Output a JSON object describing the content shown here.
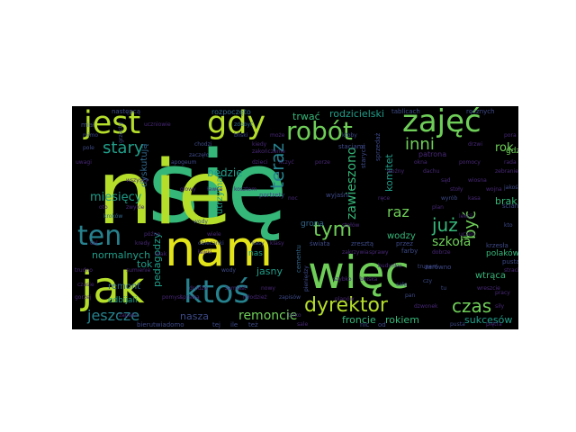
{
  "palette": {
    "yellow": "#e2e419",
    "lime": "#b5de2b",
    "green": "#6ece58",
    "teal_green": "#35b779",
    "teal": "#1f9e89",
    "cyan_blue": "#26828e",
    "blue": "#31688e",
    "indigo": "#3e4a89",
    "purple": "#482878",
    "dark_purple": "#440154"
  },
  "words": [
    {
      "text": "się",
      "c": "teal_green"
    },
    {
      "text": "nie",
      "c": "lime"
    },
    {
      "text": "nam",
      "c": "yellow"
    },
    {
      "text": "więc",
      "c": "green"
    },
    {
      "text": "jak",
      "c": "lime"
    },
    {
      "text": "jest",
      "c": "lime"
    },
    {
      "text": "gdy",
      "c": "lime"
    },
    {
      "text": "zajęć",
      "c": "green"
    },
    {
      "text": "robót",
      "c": "green"
    },
    {
      "text": "ktoś",
      "c": "cyan_blue"
    },
    {
      "text": "ten",
      "c": "cyan_blue"
    },
    {
      "text": "dyrektor",
      "c": "lime"
    },
    {
      "text": "czas",
      "c": "green"
    },
    {
      "text": "tym",
      "c": "green"
    },
    {
      "text": "teraz",
      "c": "cyan_blue"
    },
    {
      "text": "już",
      "c": "teal_green"
    },
    {
      "text": "być",
      "c": "green"
    },
    {
      "text": "stary",
      "c": "teal"
    },
    {
      "text": "inni",
      "c": "green"
    },
    {
      "text": "raz",
      "c": "green"
    },
    {
      "text": "zawieszono",
      "c": "teal_green"
    },
    {
      "text": "szkoła",
      "c": "green"
    },
    {
      "text": "jeszcze",
      "c": "cyan_blue"
    },
    {
      "text": "mamy",
      "c": "cyan_blue"
    },
    {
      "text": "miesięcy",
      "c": "teal"
    },
    {
      "text": "remoncie",
      "c": "green"
    },
    {
      "text": "froncie",
      "c": "teal_green"
    },
    {
      "text": "rokiem",
      "c": "teal_green"
    },
    {
      "text": "sukcesów",
      "c": "teal"
    },
    {
      "text": "nasza",
      "c": "indigo"
    },
    {
      "text": "pedagodzy",
      "c": "teal"
    },
    {
      "text": "normalnych",
      "c": "teal"
    },
    {
      "text": "remont",
      "c": "blue"
    },
    {
      "text": "odbijali",
      "c": "teal"
    },
    {
      "text": "będzie",
      "c": "teal"
    },
    {
      "text": "utrzymać",
      "c": "teal"
    },
    {
      "text": "jasny",
      "c": "teal"
    },
    {
      "text": "dyskutują",
      "c": "blue"
    },
    {
      "text": "tok",
      "c": "teal"
    },
    {
      "text": "trwać",
      "c": "teal_green"
    },
    {
      "text": "rodzicielski",
      "c": "teal"
    },
    {
      "text": "rok",
      "c": "green"
    },
    {
      "text": "komitet",
      "c": "teal"
    },
    {
      "text": "brak",
      "c": "teal_green"
    },
    {
      "text": "polaków",
      "c": "teal_green"
    },
    {
      "text": "wtrąca",
      "c": "teal_green"
    },
    {
      "text": "gdzie",
      "c": "green"
    },
    {
      "text": "wodzy",
      "c": "teal_green"
    },
    {
      "text": "nas",
      "c": "teal"
    },
    {
      "text": "grona",
      "c": "blue"
    },
    {
      "text": "rozpoczęto",
      "c": "blue"
    },
    {
      "text": "następcą",
      "c": "indigo"
    },
    {
      "text": "tablicach",
      "c": "indigo"
    },
    {
      "text": "ręcznych",
      "c": "indigo"
    },
    {
      "text": "bierutwiadomo",
      "c": "indigo"
    },
    {
      "text": "ściany",
      "c": "indigo"
    },
    {
      "text": "miał",
      "c": "indigo"
    },
    {
      "text": "mimo",
      "c": "indigo"
    },
    {
      "text": "zdobyć",
      "c": "blue"
    },
    {
      "text": "kroków",
      "c": "blue"
    },
    {
      "text": "wody",
      "c": "indigo"
    },
    {
      "text": "całym",
      "c": "indigo"
    },
    {
      "text": "uczniowie",
      "c": "purple"
    },
    {
      "text": "zakończenie",
      "c": "purple"
    },
    {
      "text": "uwagi",
      "c": "purple"
    },
    {
      "text": "pomocy",
      "c": "purple"
    },
    {
      "text": "lekcji",
      "c": "purple"
    },
    {
      "text": "czasie",
      "c": "purple"
    },
    {
      "text": "późno",
      "c": "purple"
    },
    {
      "text": "wiele",
      "c": "purple"
    },
    {
      "text": "dzieci",
      "c": "purple"
    },
    {
      "text": "klasy",
      "c": "purple"
    },
    {
      "text": "sprawy",
      "c": "purple"
    },
    {
      "text": "dobrze",
      "c": "purple"
    },
    {
      "text": "szybko",
      "c": "purple"
    },
    {
      "text": "młodzież",
      "c": "purple"
    },
    {
      "text": "zebranie",
      "c": "purple"
    },
    {
      "text": "wreszcie",
      "c": "purple"
    },
    {
      "text": "pracy",
      "c": "purple"
    },
    {
      "text": "budynku",
      "c": "purple"
    },
    {
      "text": "okna",
      "c": "purple"
    },
    {
      "text": "drzwi",
      "c": "purple"
    },
    {
      "text": "ławki",
      "c": "purple"
    },
    {
      "text": "sale",
      "c": "purple"
    },
    {
      "text": "farby",
      "c": "indigo"
    },
    {
      "text": "zarówno",
      "c": "indigo"
    },
    {
      "text": "cementu",
      "c": "blue"
    },
    {
      "text": "pusta",
      "c": "indigo"
    },
    {
      "text": "świata",
      "c": "indigo"
    },
    {
      "text": "zresztą",
      "c": "indigo"
    },
    {
      "text": "wyjaśni",
      "c": "indigo"
    },
    {
      "text": "starych",
      "c": "indigo"
    },
    {
      "text": "sprzedaż",
      "c": "indigo"
    },
    {
      "text": "patrona",
      "c": "purple"
    },
    {
      "text": "stacjami",
      "c": "indigo"
    },
    {
      "text": "ktoby",
      "c": "indigo"
    },
    {
      "text": "całe",
      "c": "indigo"
    },
    {
      "text": "pan",
      "c": "indigo"
    },
    {
      "text": "nic",
      "c": "indigo"
    },
    {
      "text": "od",
      "c": "indigo"
    },
    {
      "text": "tej",
      "c": "indigo"
    },
    {
      "text": "ile",
      "c": "indigo"
    },
    {
      "text": "też",
      "c": "indigo"
    },
    {
      "text": "czy",
      "c": "indigo"
    },
    {
      "text": "tu",
      "c": "indigo"
    },
    {
      "text": "kto",
      "c": "indigo"
    },
    {
      "text": "jakoś",
      "c": "indigo"
    },
    {
      "text": "obiecanki",
      "c": "indigo"
    },
    {
      "text": "portrety",
      "c": "indigo"
    },
    {
      "text": "pieniędzy",
      "c": "indigo"
    },
    {
      "text": "wyrób",
      "c": "indigo"
    },
    {
      "text": "musi",
      "c": "indigo"
    },
    {
      "text": "trupem",
      "c": "indigo"
    },
    {
      "text": "pusta",
      "c": "indigo"
    },
    {
      "text": "grzechy",
      "c": "indigo"
    },
    {
      "text": "pole",
      "c": "indigo"
    },
    {
      "text": "bliski",
      "c": "indigo"
    },
    {
      "text": "chodzi",
      "c": "indigo"
    },
    {
      "text": "zaczęło",
      "c": "indigo"
    },
    {
      "text": "apogeum",
      "c": "indigo"
    },
    {
      "text": "kasy",
      "c": "indigo"
    },
    {
      "text": "zapisów",
      "c": "indigo"
    },
    {
      "text": "wody",
      "c": "indigo"
    },
    {
      "text": "sumienie",
      "c": "purple"
    },
    {
      "text": "atak",
      "c": "purple"
    },
    {
      "text": "piętra",
      "c": "purple"
    },
    {
      "text": "trudno",
      "c": "purple"
    },
    {
      "text": "gorzej",
      "c": "purple"
    },
    {
      "text": "pora",
      "c": "purple"
    },
    {
      "text": "rada",
      "c": "purple"
    },
    {
      "text": "kiedy",
      "c": "purple"
    },
    {
      "text": "może",
      "c": "purple"
    },
    {
      "text": "nowy",
      "c": "purple"
    },
    {
      "text": "tylko",
      "c": "purple"
    },
    {
      "text": "przez",
      "c": "indigo"
    },
    {
      "text": "krzesła",
      "c": "indigo"
    },
    {
      "text": "zakrzywia",
      "c": "purple"
    },
    {
      "text": "sprawa",
      "c": "purple"
    },
    {
      "text": "zamiast",
      "c": "purple"
    },
    {
      "text": "zapału",
      "c": "purple"
    },
    {
      "text": "planów",
      "c": "purple"
    },
    {
      "text": "siły",
      "c": "purple"
    },
    {
      "text": "uczeń",
      "c": "purple"
    },
    {
      "text": "stoły",
      "c": "purple"
    },
    {
      "text": "stołów",
      "c": "purple"
    },
    {
      "text": "ręce",
      "c": "purple"
    },
    {
      "text": "noc",
      "c": "purple"
    },
    {
      "text": "kosztem",
      "c": "purple"
    },
    {
      "text": "głowy",
      "c": "purple"
    },
    {
      "text": "wszyscy",
      "c": "purple"
    },
    {
      "text": "cel",
      "c": "purple"
    },
    {
      "text": "kredy",
      "c": "purple"
    },
    {
      "text": "stracili",
      "c": "purple"
    },
    {
      "text": "dzwonek",
      "c": "purple"
    },
    {
      "text": "boiska",
      "c": "purple"
    },
    {
      "text": "drodze",
      "c": "purple"
    },
    {
      "text": "pomysł",
      "c": "purple"
    },
    {
      "text": "zwykle",
      "c": "purple"
    },
    {
      "text": "oto",
      "c": "purple"
    },
    {
      "text": "ławce",
      "c": "purple"
    },
    {
      "text": "liczyć",
      "c": "purple"
    },
    {
      "text": "porze",
      "c": "purple"
    },
    {
      "text": "woźny",
      "c": "purple"
    },
    {
      "text": "dachu",
      "c": "purple"
    },
    {
      "text": "sąd",
      "c": "purple"
    },
    {
      "text": "wiosna",
      "c": "purple"
    },
    {
      "text": "wojna",
      "c": "purple"
    },
    {
      "text": "kasa",
      "c": "purple"
    },
    {
      "text": "plan",
      "c": "purple"
    }
  ]
}
